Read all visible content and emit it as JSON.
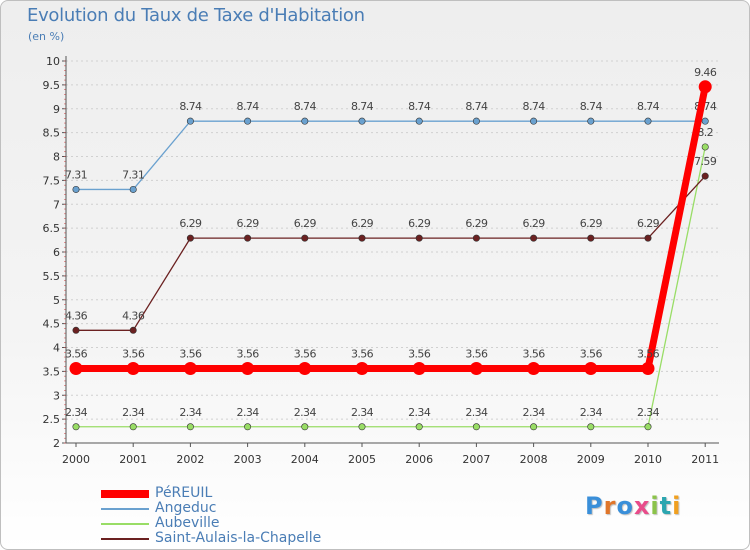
{
  "title": "Evolution du Taux de Taxe d'Habitation",
  "unit": "(en %)",
  "logo": "Proxiti",
  "chart_data": {
    "type": "line",
    "title": "Evolution du Taux de Taxe d'Habitation",
    "ylabel": "(en %)",
    "xlabel": "",
    "x": [
      "2000",
      "2001",
      "2002",
      "2003",
      "2004",
      "2005",
      "2006",
      "2007",
      "2008",
      "2009",
      "2010",
      "2011"
    ],
    "ylim": [
      2,
      10
    ],
    "yticks": [
      "2",
      "2.5",
      "3",
      "3.5",
      "4",
      "4.5",
      "5",
      "5.5",
      "6",
      "6.5",
      "7",
      "7.5",
      "8",
      "8.5",
      "9",
      "9.5",
      "10"
    ],
    "grid": "horizontal dashed",
    "legend": "bottom-left",
    "series": [
      {
        "name": "PéREUIL",
        "color": "#ff0000",
        "values": [
          3.56,
          3.56,
          3.56,
          3.56,
          3.56,
          3.56,
          3.56,
          3.56,
          3.56,
          3.56,
          3.56,
          9.46
        ],
        "labels": [
          "3.56",
          "3.56",
          "3.56",
          "3.56",
          "3.56",
          "3.56",
          "3.56",
          "3.56",
          "3.56",
          "3.56",
          "3.56",
          "9.46"
        ]
      },
      {
        "name": "Angeduc",
        "color": "#6aa1cf",
        "values": [
          7.31,
          7.31,
          8.74,
          8.74,
          8.74,
          8.74,
          8.74,
          8.74,
          8.74,
          8.74,
          8.74,
          8.74
        ],
        "labels": [
          "7.31",
          "7.31",
          "8.74",
          "8.74",
          "8.74",
          "8.74",
          "8.74",
          "8.74",
          "8.74",
          "8.74",
          "8.74",
          "8.74"
        ]
      },
      {
        "name": "Aubeville",
        "color": "#99dd66",
        "values": [
          2.34,
          2.34,
          2.34,
          2.34,
          2.34,
          2.34,
          2.34,
          2.34,
          2.34,
          2.34,
          2.34,
          8.2
        ],
        "labels": [
          "2.34",
          "2.34",
          "2.34",
          "2.34",
          "2.34",
          "2.34",
          "2.34",
          "2.34",
          "2.34",
          "2.34",
          "2.34",
          "8.2"
        ]
      },
      {
        "name": "Saint-Aulais-la-Chapelle",
        "color": "#6b2121",
        "values": [
          4.36,
          4.36,
          6.29,
          6.29,
          6.29,
          6.29,
          6.29,
          6.29,
          6.29,
          6.29,
          6.29,
          7.59
        ],
        "labels": [
          "4.36",
          "4.36",
          "6.29",
          "6.29",
          "6.29",
          "6.29",
          "6.29",
          "6.29",
          "6.29",
          "6.29",
          "6.29",
          "7.59"
        ]
      }
    ]
  }
}
